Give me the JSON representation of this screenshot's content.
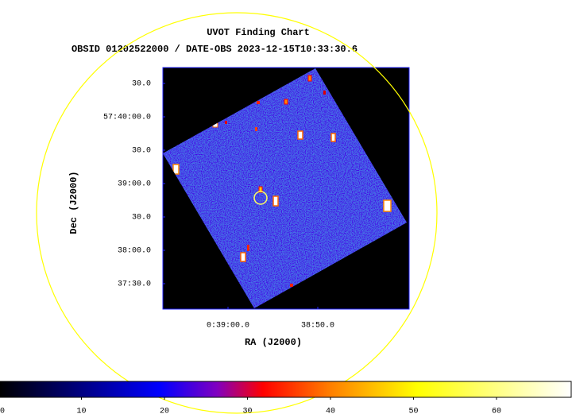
{
  "chart_data": {
    "type": "image",
    "title": "UVOT Finding Chart",
    "subtitle": "OBSID 01202522000 / DATE-OBS 2023-12-15T10:33:30.6",
    "x_label": "RA (J2000)",
    "y_label": "Dec (J2000)",
    "xlim": [
      9.78024,
      9.66593
    ],
    "xticks": [
      {
        "value": 9.75,
        "label": "0:39:00.0"
      },
      {
        "value": 9.708333,
        "label": "38:50.0"
      }
    ],
    "ylim": [
      57.61865,
      57.67897
    ],
    "yticks": [
      {
        "value": 57.675,
        "label": "30.0"
      },
      {
        "value": 57.666667,
        "label": "57:40:00.0"
      },
      {
        "value": 57.658333,
        "label": "30.0"
      },
      {
        "value": 57.65,
        "label": "39:00.0"
      },
      {
        "value": 57.641667,
        "label": "30.0"
      },
      {
        "value": 57.633333,
        "label": "38:00.0"
      },
      {
        "value": 57.625,
        "label": "37:30.0"
      }
    ],
    "clim": [
      0,
      69
    ],
    "cticks": [
      0,
      10,
      20,
      30,
      40,
      50,
      60
    ]
  }
}
